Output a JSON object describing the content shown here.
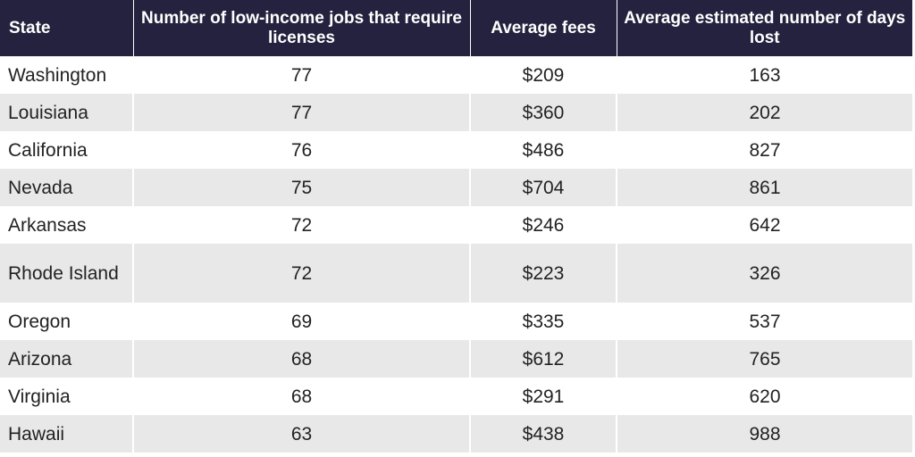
{
  "headers": {
    "state": "State",
    "jobs": "Number of low-income jobs that require licenses",
    "fees": "Average fees",
    "days": "Average estimated number of days lost"
  },
  "rows": [
    {
      "state": "Washington",
      "jobs": "77",
      "fees": "$209",
      "days": "163"
    },
    {
      "state": "Louisiana",
      "jobs": "77",
      "fees": "$360",
      "days": "202"
    },
    {
      "state": "California",
      "jobs": "76",
      "fees": "$486",
      "days": "827"
    },
    {
      "state": "Nevada",
      "jobs": "75",
      "fees": "$704",
      "days": "861"
    },
    {
      "state": "Arkansas",
      "jobs": "72",
      "fees": "$246",
      "days": "642"
    },
    {
      "state": "Rhode Island",
      "jobs": "72",
      "fees": "$223",
      "days": "326"
    },
    {
      "state": "Oregon",
      "jobs": "69",
      "fees": "$335",
      "days": "537"
    },
    {
      "state": "Arizona",
      "jobs": "68",
      "fees": "$612",
      "days": "765"
    },
    {
      "state": "Virginia",
      "jobs": "68",
      "fees": "$291",
      "days": "620"
    },
    {
      "state": "Hawaii",
      "jobs": "63",
      "fees": "$438",
      "days": "988"
    }
  ]
}
